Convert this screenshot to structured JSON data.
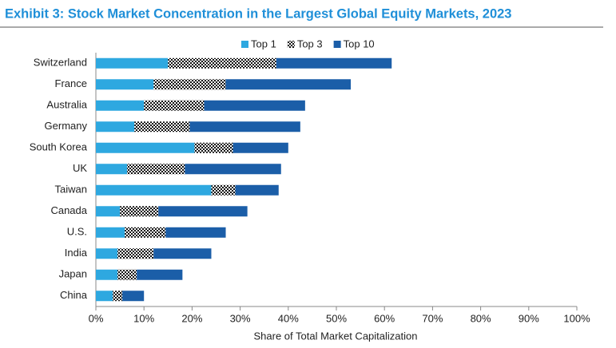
{
  "chart_data": {
    "type": "bar",
    "orientation": "horizontal",
    "stacked": true,
    "title": "Exhibit 3: Stock Market Concentration in the Largest Global Equity Markets, 2023",
    "x_label": "Share of Total Market Capitalization",
    "categories": [
      "Switzerland",
      "France",
      "Australia",
      "Germany",
      "South Korea",
      "UK",
      "Taiwan",
      "Canada",
      "U.S.",
      "India",
      "Japan",
      "China"
    ],
    "series": [
      {
        "name": "Top 1",
        "color": "#2ea8e0",
        "values": [
          15,
          12,
          10,
          8,
          20.5,
          6.5,
          24,
          5,
          6,
          4.5,
          4.5,
          3.5
        ]
      },
      {
        "name": "Top 3",
        "color": "#111111",
        "hatch": true,
        "values": [
          22.5,
          15,
          12.5,
          11.5,
          8,
          12,
          5,
          8,
          8.5,
          7.5,
          4,
          2
        ]
      },
      {
        "name": "Top 10",
        "color": "#1b5ea8",
        "values": [
          24,
          26,
          21,
          23,
          11.5,
          20,
          9,
          18.5,
          12.5,
          12,
          9.5,
          4.5
        ]
      }
    ],
    "xlim": [
      0,
      100
    ],
    "xticks": [
      {
        "value": 0,
        "label": "0%"
      },
      {
        "value": 10,
        "label": "10%"
      },
      {
        "value": 20,
        "label": "20%"
      },
      {
        "value": 30,
        "label": "30%"
      },
      {
        "value": 40,
        "label": "40%"
      },
      {
        "value": 50,
        "label": "50%"
      },
      {
        "value": 60,
        "label": "60%"
      },
      {
        "value": 70,
        "label": "70%"
      },
      {
        "value": 80,
        "label": "80%"
      },
      {
        "value": 90,
        "label": "90%"
      },
      {
        "value": 100,
        "label": "100%"
      }
    ],
    "legend": "top",
    "grid": false
  }
}
